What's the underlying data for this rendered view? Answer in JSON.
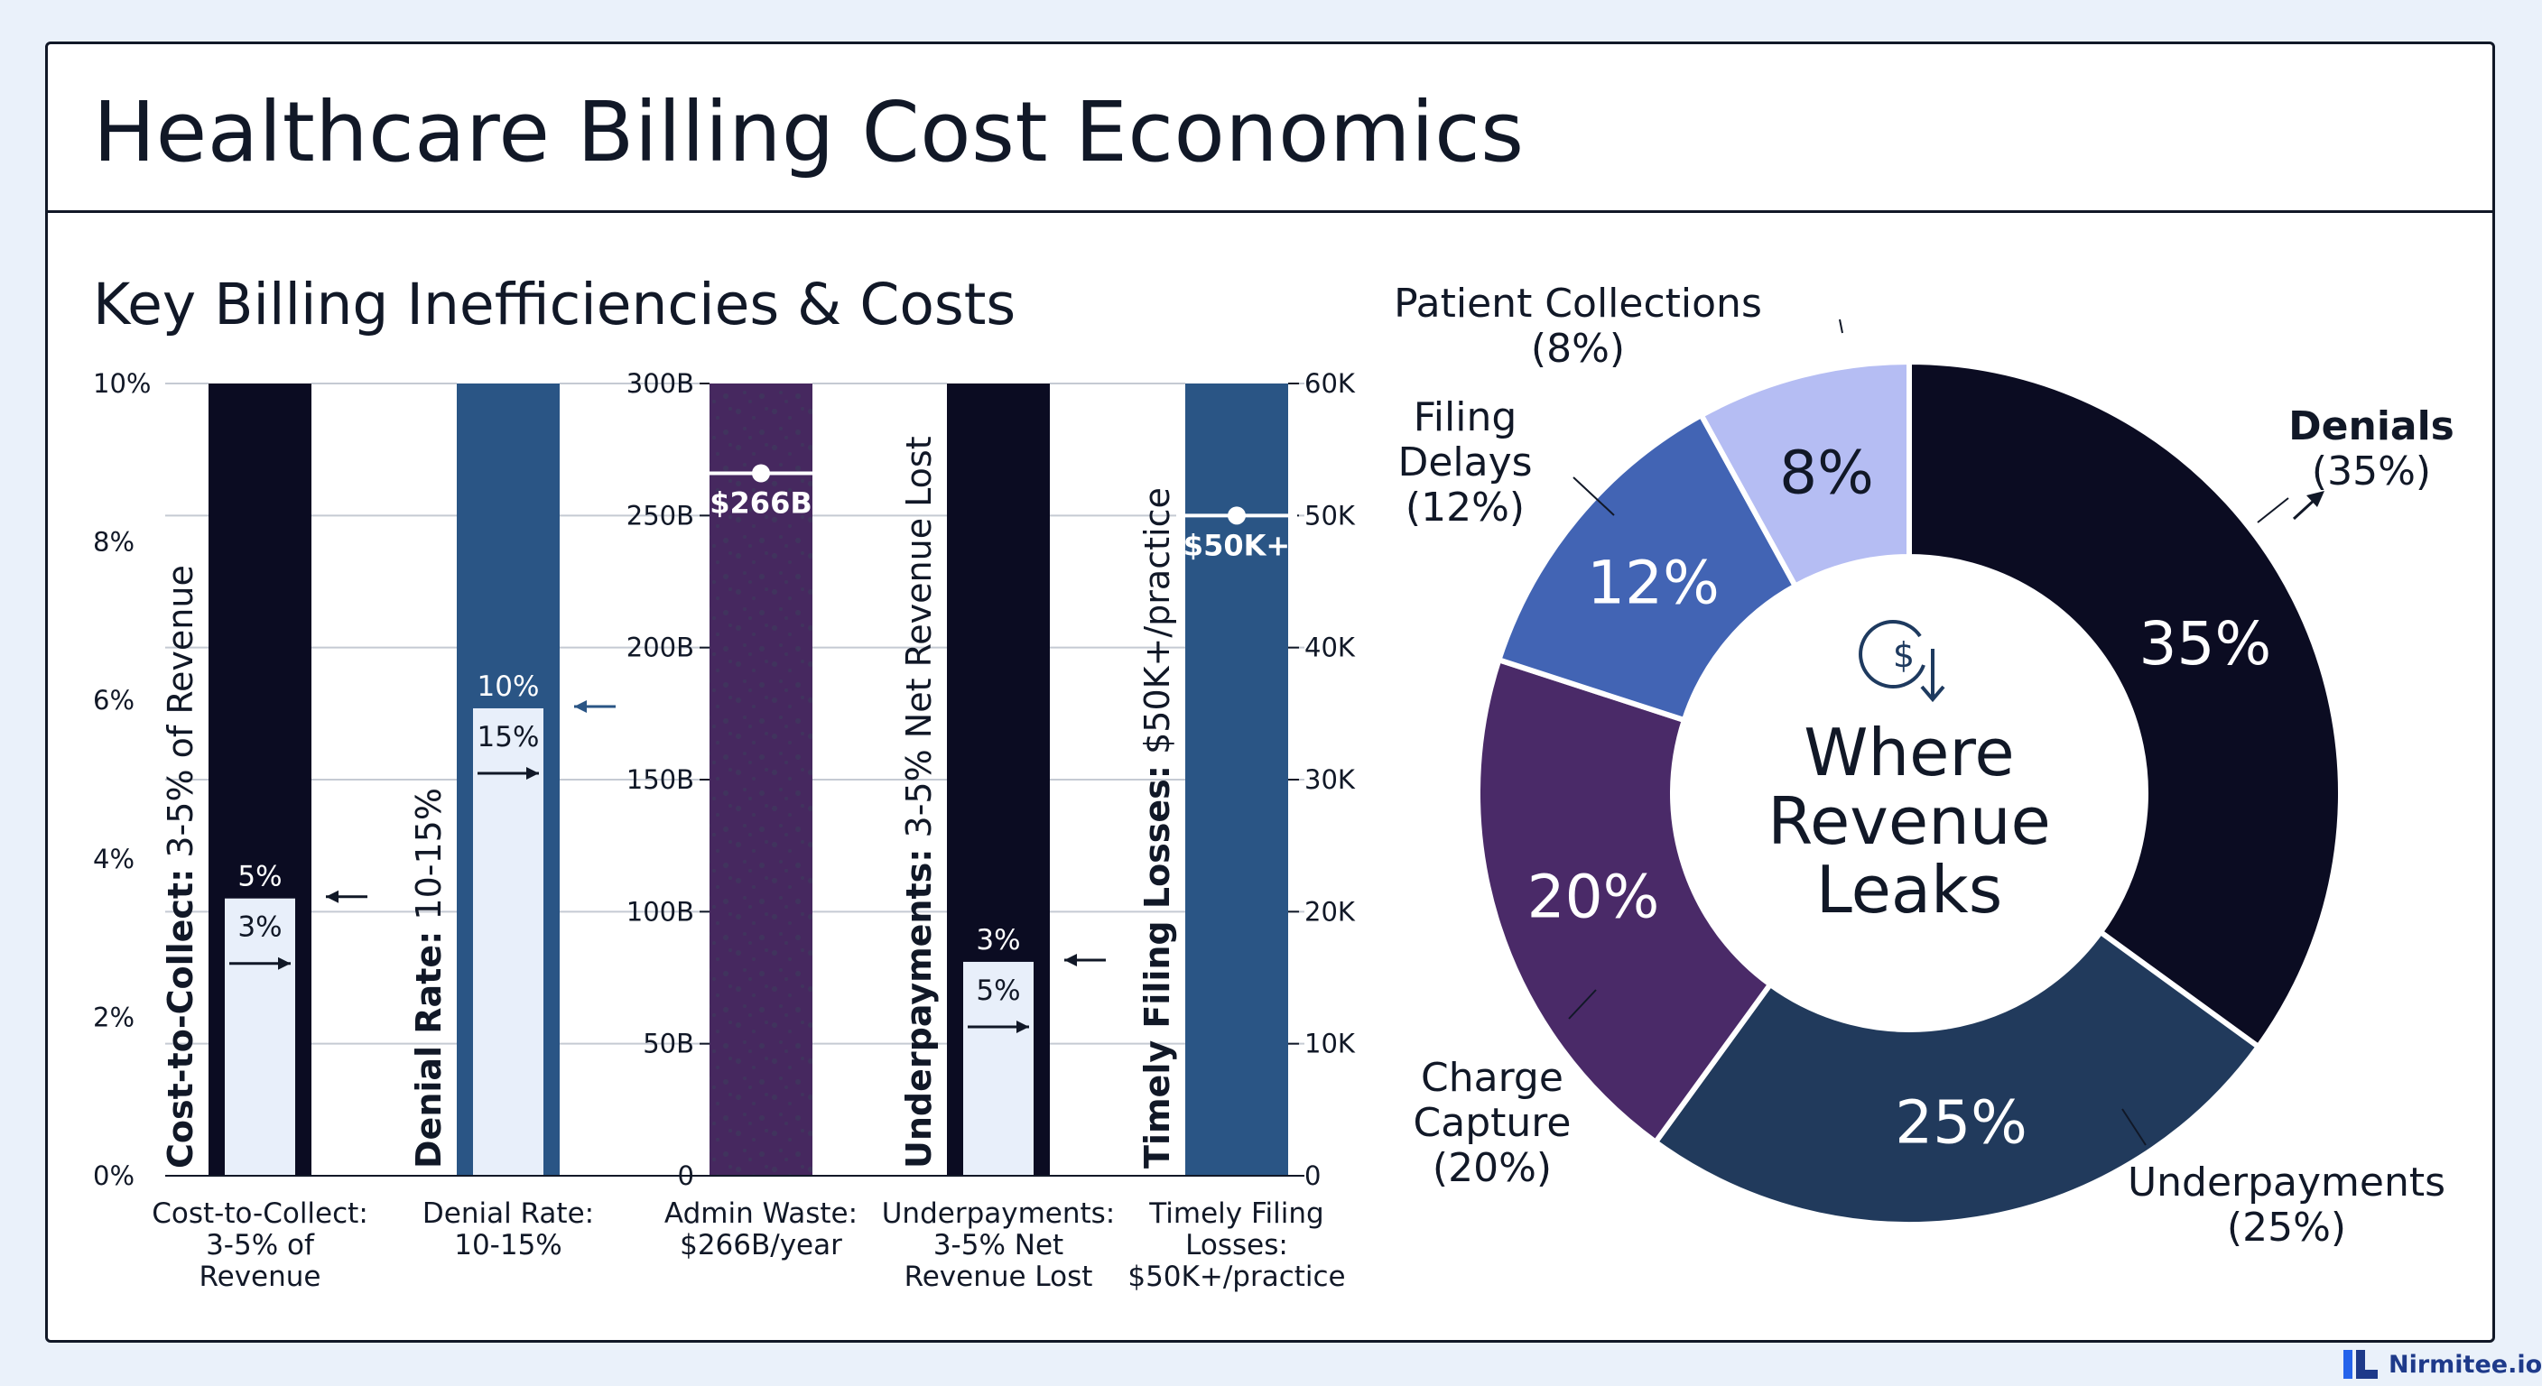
{
  "title": "Healthcare Billing Cost Economics",
  "bars_section": {
    "subtitle": "Key Billing Inefficiencies & Costs",
    "left_axis_ticks": [
      "0%",
      "2%",
      "4%",
      "6%",
      "8%",
      "10%"
    ],
    "mid_axis_ticks": [
      "0",
      "50B",
      "100B",
      "150B",
      "200B",
      "250B",
      "300B"
    ],
    "right_axis_ticks": [
      "0",
      "10K",
      "20K",
      "30K",
      "40K",
      "50K",
      "60K"
    ]
  },
  "chart_data": [
    {
      "type": "bar",
      "title": "Key Billing Inefficiencies & Costs",
      "bars": [
        {
          "bold_label": "Cost-to-Collect:",
          "label_rest": " 3-5% of Revenue",
          "caption": [
            "Cost-to-Collect:",
            "3-5% of",
            "Revenue"
          ],
          "axis": "percent",
          "ylim": [
            0,
            10
          ],
          "fill_value": 3.5,
          "marker_value": null,
          "label_top": "5%",
          "label_bottom": "3%",
          "value_label": null,
          "color": "#0b0c22"
        },
        {
          "bold_label": "Denial Rate:",
          "label_rest": " 10-15%",
          "caption": [
            "Denial Rate:",
            "10-15%"
          ],
          "axis": "percent",
          "ylim": [
            0,
            10
          ],
          "fill_value": 5.9,
          "marker_value": null,
          "label_top": "10%",
          "label_bottom": "15%",
          "value_label": null,
          "color": "#2a5585"
        },
        {
          "bold_label": "",
          "label_rest": "",
          "caption": [
            "Admin Waste:",
            "$266B/year"
          ],
          "axis": "billions",
          "ylim": [
            0,
            300
          ],
          "fill_value": null,
          "marker_value": 266,
          "label_top": null,
          "label_bottom": null,
          "value_label": "$266B",
          "color": "#46285f"
        },
        {
          "bold_label": "Underpayments:",
          "label_rest": " 3-5% Net Revenue Lost",
          "caption": [
            "Underpayments:",
            "3-5% Net",
            "Revenue Lost"
          ],
          "axis": "percent",
          "ylim": [
            0,
            10
          ],
          "fill_value": 2.7,
          "marker_value": null,
          "label_top": "3%",
          "label_bottom": "5%",
          "value_label": null,
          "color": "#0b0c22"
        },
        {
          "bold_label": "Timely Filing Losses:",
          "label_rest": " $50K+/practice",
          "caption": [
            "Timely Filing",
            "Losses:",
            "$50K+/practice"
          ],
          "axis": "thousands",
          "ylim": [
            0,
            60
          ],
          "fill_value": null,
          "marker_value": 50,
          "label_top": null,
          "label_bottom": null,
          "value_label": "$50K+",
          "color": "#2a5585"
        }
      ]
    },
    {
      "type": "pie",
      "title": "Where Revenue Leaks",
      "center_label": [
        "Where",
        "Revenue",
        "Leaks"
      ],
      "slices": [
        {
          "name": "Denials",
          "value": 35,
          "label": "35%",
          "outer_label": [
            "Denials",
            "(35%)"
          ],
          "color": "#0b0c22"
        },
        {
          "name": "Underpayments",
          "value": 25,
          "label": "25%",
          "outer_label": [
            "Underpayments",
            "(25%)"
          ],
          "color": "#213a5c"
        },
        {
          "name": "Charge Capture",
          "value": 20,
          "label": "20%",
          "outer_label": [
            "Charge",
            "Capture",
            "(20%)"
          ],
          "color": "#4a2a68"
        },
        {
          "name": "Filing Delays",
          "value": 12,
          "label": "12%",
          "outer_label": [
            "Filing",
            "Delays",
            "(12%)"
          ],
          "color": "#4264b4"
        },
        {
          "name": "Patient Collections",
          "value": 8,
          "label": "8%",
          "outer_label": [
            "Patient Collections",
            "(8%)"
          ],
          "color": "#b5bdf3"
        }
      ]
    }
  ],
  "icons": {
    "center": "dollar-coin-down-icon",
    "brand": "nirmitee-logo-icon"
  },
  "footer": {
    "brand": "Nirmitee.io"
  }
}
